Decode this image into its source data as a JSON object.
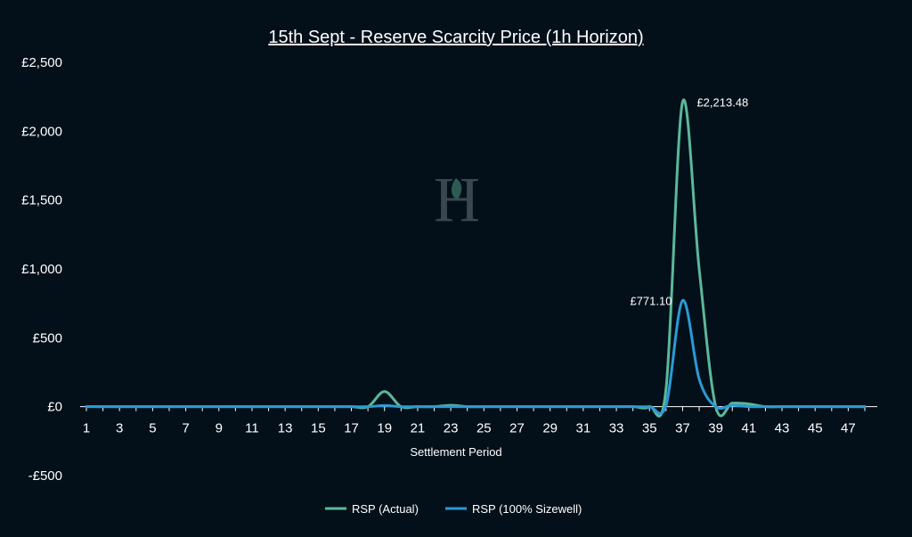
{
  "chart_data": {
    "type": "line",
    "title": "15th Sept - Reserve Scarcity Price (1h Horizon)",
    "xlabel": "Settlement Period",
    "ylabel": "",
    "ylim": [
      -500,
      2500
    ],
    "y_ticks": [
      -500,
      0,
      500,
      1000,
      1500,
      2000,
      2500
    ],
    "y_tick_labels": [
      "-£500",
      "£0",
      "£500",
      "£1,000",
      "£1,500",
      "£2,000",
      "£2,500"
    ],
    "x": [
      1,
      2,
      3,
      4,
      5,
      6,
      7,
      8,
      9,
      10,
      11,
      12,
      13,
      14,
      15,
      16,
      17,
      18,
      19,
      20,
      21,
      22,
      23,
      24,
      25,
      26,
      27,
      28,
      29,
      30,
      31,
      32,
      33,
      34,
      35,
      36,
      37,
      38,
      39,
      40,
      41,
      42,
      43,
      44,
      45,
      46,
      47,
      48
    ],
    "x_tick_labels": [
      "1",
      "3",
      "5",
      "7",
      "9",
      "11",
      "13",
      "15",
      "17",
      "19",
      "21",
      "23",
      "25",
      "27",
      "29",
      "31",
      "33",
      "35",
      "37",
      "39",
      "41",
      "43",
      "45",
      "47"
    ],
    "grid": false,
    "legend_position": "bottom",
    "series": [
      {
        "name": "RSP (Actual)",
        "color": "#5bb89a",
        "values": [
          0,
          0,
          0,
          0,
          0,
          0,
          0,
          0,
          0,
          0,
          0,
          0,
          0,
          0,
          0,
          0,
          0,
          0,
          110,
          0,
          0,
          0,
          10,
          0,
          0,
          0,
          0,
          0,
          0,
          0,
          0,
          0,
          0,
          0,
          0,
          130,
          2213.48,
          1000,
          0,
          25,
          20,
          0,
          0,
          0,
          0,
          0,
          0,
          0
        ]
      },
      {
        "name": "RSP (100% Sizewell)",
        "color": "#2b9ad6",
        "values": [
          0,
          0,
          0,
          0,
          0,
          0,
          0,
          0,
          0,
          0,
          0,
          0,
          0,
          0,
          0,
          0,
          0,
          0,
          8,
          0,
          0,
          0,
          0,
          0,
          0,
          0,
          0,
          0,
          0,
          0,
          0,
          0,
          0,
          0,
          0,
          10,
          771.1,
          200,
          0,
          10,
          0,
          0,
          0,
          0,
          0,
          0,
          0,
          0
        ]
      }
    ],
    "annotations": [
      {
        "series": 0,
        "x": 37,
        "text": "£2,213.48",
        "side": "right"
      },
      {
        "series": 1,
        "x": 37,
        "text": "£771.10",
        "side": "left"
      }
    ]
  }
}
